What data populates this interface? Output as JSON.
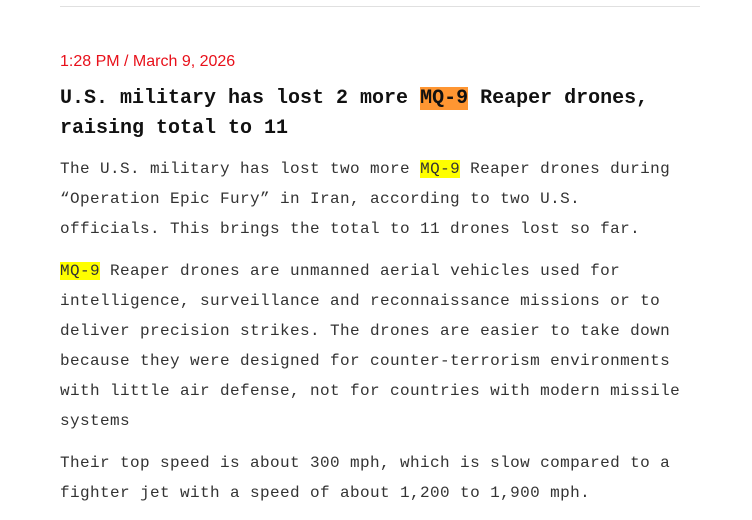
{
  "article": {
    "timestamp": "1:28 PM / March 9, 2026",
    "headline": {
      "before": "U.S. military has lost 2 more ",
      "highlight": "MQ-9",
      "after": " Reaper drones, raising total to 11"
    },
    "paragraphs": [
      {
        "before": "The U.S. military has lost two more ",
        "highlight": "MQ-9",
        "after": " Reaper drones during “Operation Epic Fury” in Iran, according to two U.S. officials. This brings the total to 11 drones lost so far."
      },
      {
        "before": "",
        "highlight": "MQ-9",
        "after": " Reaper drones are unmanned aerial vehicles used for intelligence, surveillance and reconnaissance missions or to deliver precision strikes. The drones are easier to take down because they were designed for counter-terrorism environments with little air defense, not for countries with modern missile systems"
      },
      {
        "before": "Their top speed is about 300 mph, which is slow compared to a fighter jet with a speed of about 1,200 to 1,900 mph.",
        "highlight": "",
        "after": ""
      }
    ]
  },
  "colors": {
    "timestamp": "#e8101a",
    "headline_highlight": "#ff9632",
    "body_highlight": "#ffff00"
  }
}
